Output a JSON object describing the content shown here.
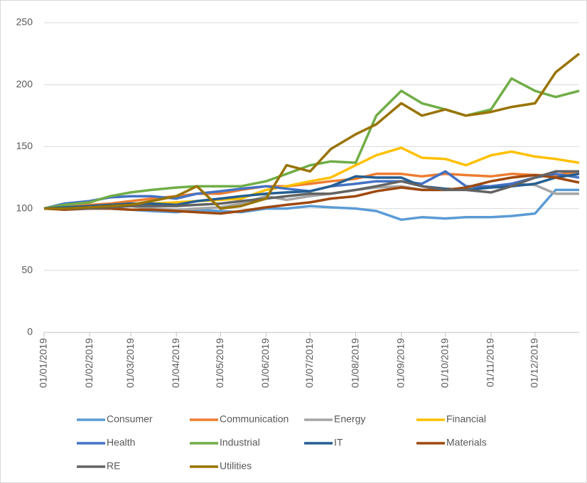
{
  "chart_data": {
    "type": "line",
    "x": [
      "01/01/2019",
      "15/01/2019",
      "01/02/2019",
      "15/02/2019",
      "01/03/2019",
      "15/03/2019",
      "01/04/2019",
      "15/04/2019",
      "01/05/2019",
      "15/05/2019",
      "01/06/2019",
      "15/06/2019",
      "01/07/2019",
      "15/07/2019",
      "01/08/2019",
      "15/08/2019",
      "01/09/2019",
      "15/09/2019",
      "01/10/2019",
      "15/10/2019",
      "01/11/2019",
      "15/11/2019",
      "01/12/2019",
      "15/12/2019",
      "31/12/2019"
    ],
    "series": [
      {
        "name": "Consumer",
        "color": "#5b9bd5",
        "values": [
          100,
          100,
          101,
          100,
          99,
          98,
          97,
          99,
          98,
          97,
          100,
          100,
          102,
          101,
          100,
          98,
          91,
          93,
          92,
          93,
          93,
          94,
          96,
          115,
          115
        ]
      },
      {
        "name": "Communication",
        "color": "#ed7d31",
        "values": [
          100,
          101,
          103,
          104,
          106,
          108,
          110,
          112,
          112,
          115,
          118,
          118,
          120,
          122,
          124,
          128,
          128,
          126,
          128,
          127,
          126,
          128,
          127,
          127,
          130
        ]
      },
      {
        "name": "Energy",
        "color": "#a5a5a5",
        "values": [
          100,
          100,
          101,
          101,
          102,
          100,
          99,
          100,
          101,
          104,
          110,
          107,
          110,
          112,
          115,
          117,
          118,
          115,
          115,
          116,
          118,
          120,
          119,
          112,
          112
        ]
      },
      {
        "name": "Financial",
        "color": "#ffc000",
        "values": [
          100,
          100,
          101,
          102,
          103,
          104,
          105,
          106,
          107,
          108,
          115,
          118,
          122,
          125,
          135,
          143,
          149,
          141,
          140,
          135,
          143,
          146,
          142,
          140,
          137
        ]
      },
      {
        "name": "Health",
        "color": "#4472c4",
        "values": [
          100,
          104,
          106,
          109,
          110,
          110,
          108,
          112,
          114,
          116,
          118,
          116,
          114,
          118,
          120,
          122,
          122,
          120,
          130,
          118,
          118,
          120,
          125,
          128,
          125
        ]
      },
      {
        "name": "Industrial",
        "color": "#70ad47",
        "values": [
          100,
          103,
          105,
          110,
          113,
          115,
          117,
          118,
          118,
          118,
          122,
          128,
          135,
          138,
          137,
          175,
          195,
          185,
          180,
          175,
          180,
          205,
          195,
          190,
          195
        ]
      },
      {
        "name": "IT",
        "color": "#255e91",
        "values": [
          100,
          101,
          102,
          103,
          104,
          104,
          103,
          106,
          108,
          110,
          112,
          113,
          114,
          118,
          126,
          125,
          125,
          118,
          116,
          115,
          117,
          118,
          120,
          125,
          128
        ]
      },
      {
        "name": "Materials",
        "color": "#9e480e",
        "values": [
          100,
          99,
          100,
          100,
          99,
          99,
          98,
          97,
          96,
          98,
          101,
          103,
          105,
          108,
          110,
          114,
          117,
          115,
          115,
          117,
          122,
          125,
          127,
          125,
          121
        ]
      },
      {
        "name": "RE",
        "color": "#636363",
        "values": [
          100,
          100,
          100,
          101,
          102,
          102,
          102,
          103,
          104,
          106,
          108,
          110,
          112,
          112,
          115,
          118,
          122,
          118,
          115,
          115,
          113,
          118,
          125,
          130,
          130
        ]
      },
      {
        "name": "Utilities",
        "color": "#997300",
        "values": [
          100,
          100,
          101,
          102,
          103,
          106,
          110,
          118,
          100,
          102,
          108,
          135,
          130,
          148,
          160,
          168,
          185,
          175,
          180,
          175,
          178,
          182,
          185,
          210,
          225
        ]
      }
    ],
    "xticks": [
      "01/01/2019",
      "01/02/2019",
      "01/03/2019",
      "01/04/2019",
      "01/05/2019",
      "01/06/2019",
      "01/07/2019",
      "01/08/2019",
      "01/09/2019",
      "01/10/2019",
      "01/11/2019",
      "01/12/2019"
    ],
    "ylim": [
      0,
      250
    ],
    "yticks": [
      0,
      50,
      100,
      150,
      200,
      250
    ],
    "grid": true
  }
}
